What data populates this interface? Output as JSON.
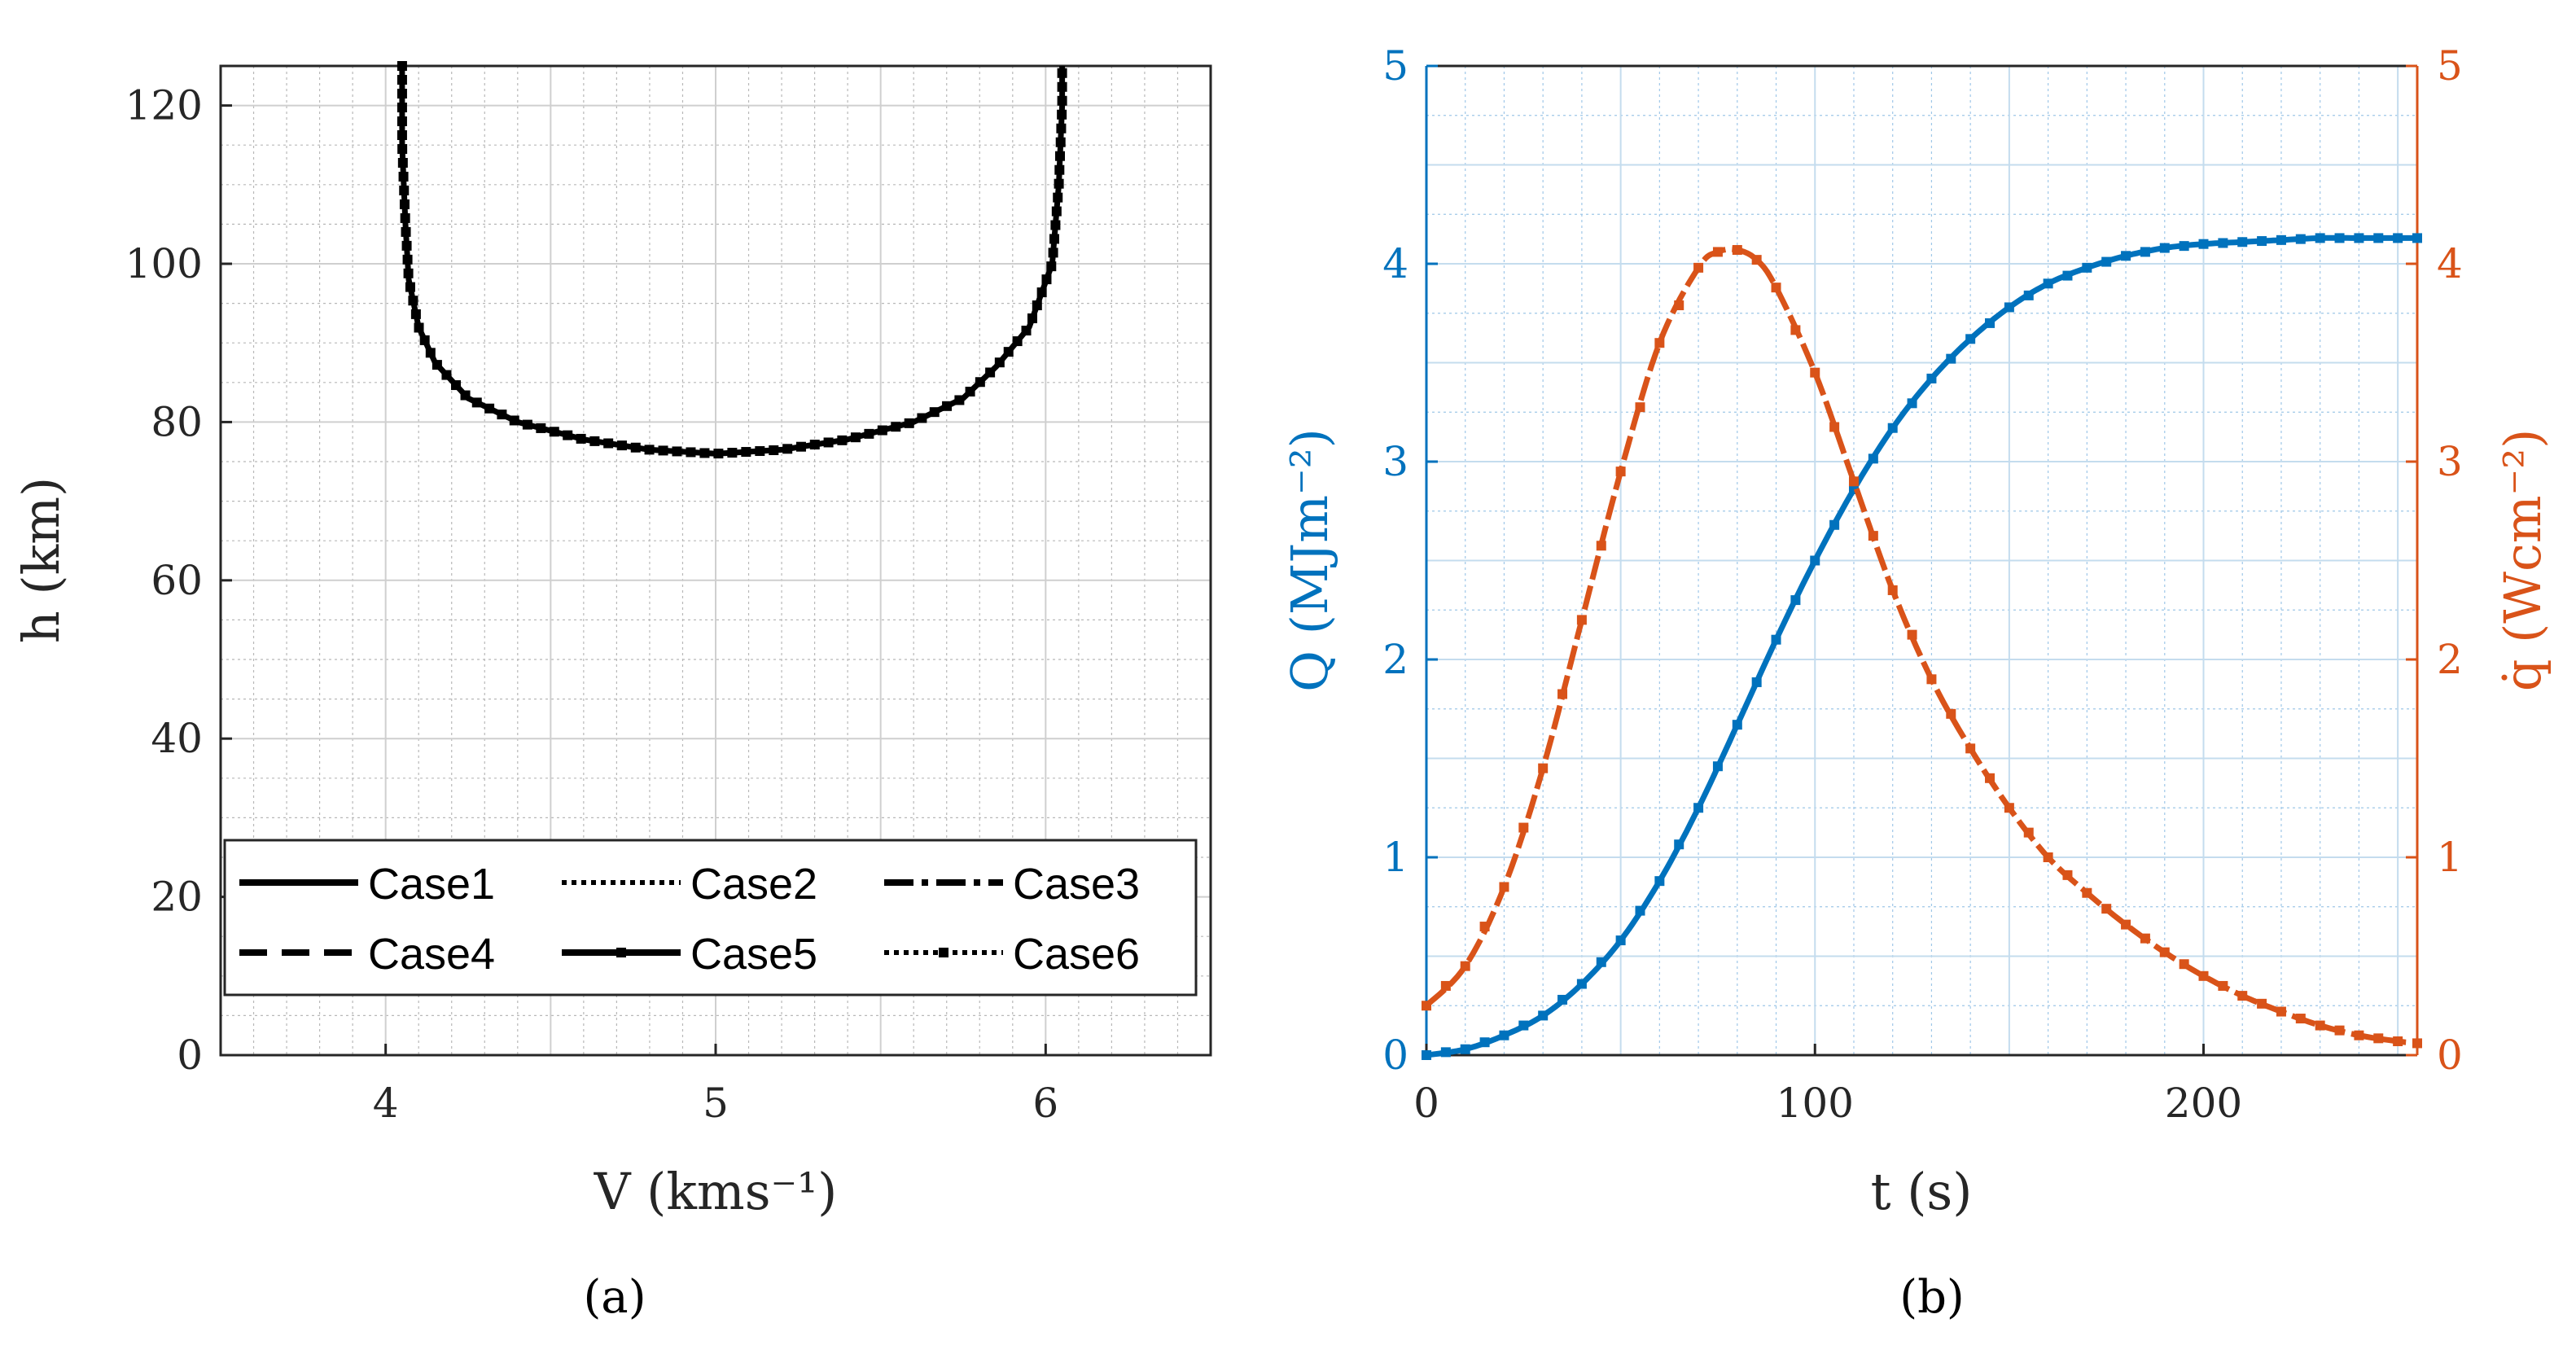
{
  "chart_data": [
    {
      "type": "line",
      "panel_label": "(a)",
      "xlabel": "V (kms⁻¹)",
      "ylabel": "h (km)",
      "xlim": [
        3.5,
        6.5
      ],
      "ylim": [
        0,
        125
      ],
      "xticks": [
        4,
        5,
        6
      ],
      "yticks": [
        0,
        20,
        40,
        60,
        80,
        100,
        120
      ],
      "grid": true,
      "minor_grid": true,
      "legend_position": "bottom",
      "series": [
        {
          "name": "Case1",
          "style": "solid"
        },
        {
          "name": "Case2",
          "style": "dotted"
        },
        {
          "name": "Case3",
          "style": "dashdot"
        },
        {
          "name": "Case4",
          "style": "dashed"
        },
        {
          "name": "Case5",
          "style": "solid-square-markers"
        },
        {
          "name": "Case6",
          "style": "dotted-square-markers"
        }
      ],
      "trajectory": {
        "x": [
          4.05,
          4.05,
          4.06,
          4.07,
          4.1,
          4.15,
          4.25,
          4.4,
          4.6,
          4.8,
          5.0,
          5.2,
          5.4,
          5.6,
          5.75,
          5.85,
          5.95,
          6.02,
          6.04,
          6.05,
          6.05
        ],
        "y": [
          125,
          115,
          105,
          98,
          92,
          87.5,
          83,
          80,
          77.8,
          76.5,
          76,
          76.5,
          77.8,
          80,
          83,
          87,
          92,
          100,
          110,
          120,
          125
        ]
      },
      "color": "#000000"
    },
    {
      "type": "line",
      "panel_label": "(b)",
      "xlabel": "t (s)",
      "ylabel_left": "Q (MJm⁻²)",
      "ylabel_right": "q̇ (Wcm⁻²)",
      "xlim": [
        0,
        255
      ],
      "ylim_left": [
        0,
        5
      ],
      "ylim_right": [
        0,
        5
      ],
      "xticks": [
        0,
        100,
        200
      ],
      "yticks": [
        0,
        1,
        2,
        3,
        4,
        5
      ],
      "grid": true,
      "minor_grid": true,
      "series": [
        {
          "axis": "left",
          "color": "#0072BD",
          "x": [
            0,
            10,
            20,
            30,
            40,
            50,
            60,
            70,
            80,
            90,
            100,
            110,
            120,
            130,
            140,
            150,
            160,
            170,
            180,
            190,
            200,
            210,
            220,
            230,
            240,
            250,
            255
          ],
          "values": [
            0,
            0.03,
            0.1,
            0.2,
            0.36,
            0.58,
            0.88,
            1.25,
            1.67,
            2.1,
            2.5,
            2.86,
            3.17,
            3.42,
            3.62,
            3.78,
            3.9,
            3.98,
            4.04,
            4.08,
            4.1,
            4.11,
            4.12,
            4.13,
            4.13,
            4.13,
            4.13
          ]
        },
        {
          "axis": "right",
          "color": "#D95319",
          "x": [
            0,
            10,
            20,
            30,
            40,
            50,
            60,
            70,
            75,
            80,
            85,
            90,
            100,
            110,
            120,
            130,
            140,
            150,
            160,
            170,
            180,
            190,
            200,
            210,
            220,
            230,
            240,
            250,
            255
          ],
          "values": [
            0.25,
            0.45,
            0.85,
            1.45,
            2.2,
            2.95,
            3.6,
            3.98,
            4.06,
            4.07,
            4.02,
            3.88,
            3.45,
            2.9,
            2.35,
            1.9,
            1.55,
            1.25,
            1.0,
            0.82,
            0.66,
            0.52,
            0.4,
            0.3,
            0.22,
            0.15,
            0.1,
            0.07,
            0.06
          ]
        }
      ]
    }
  ]
}
